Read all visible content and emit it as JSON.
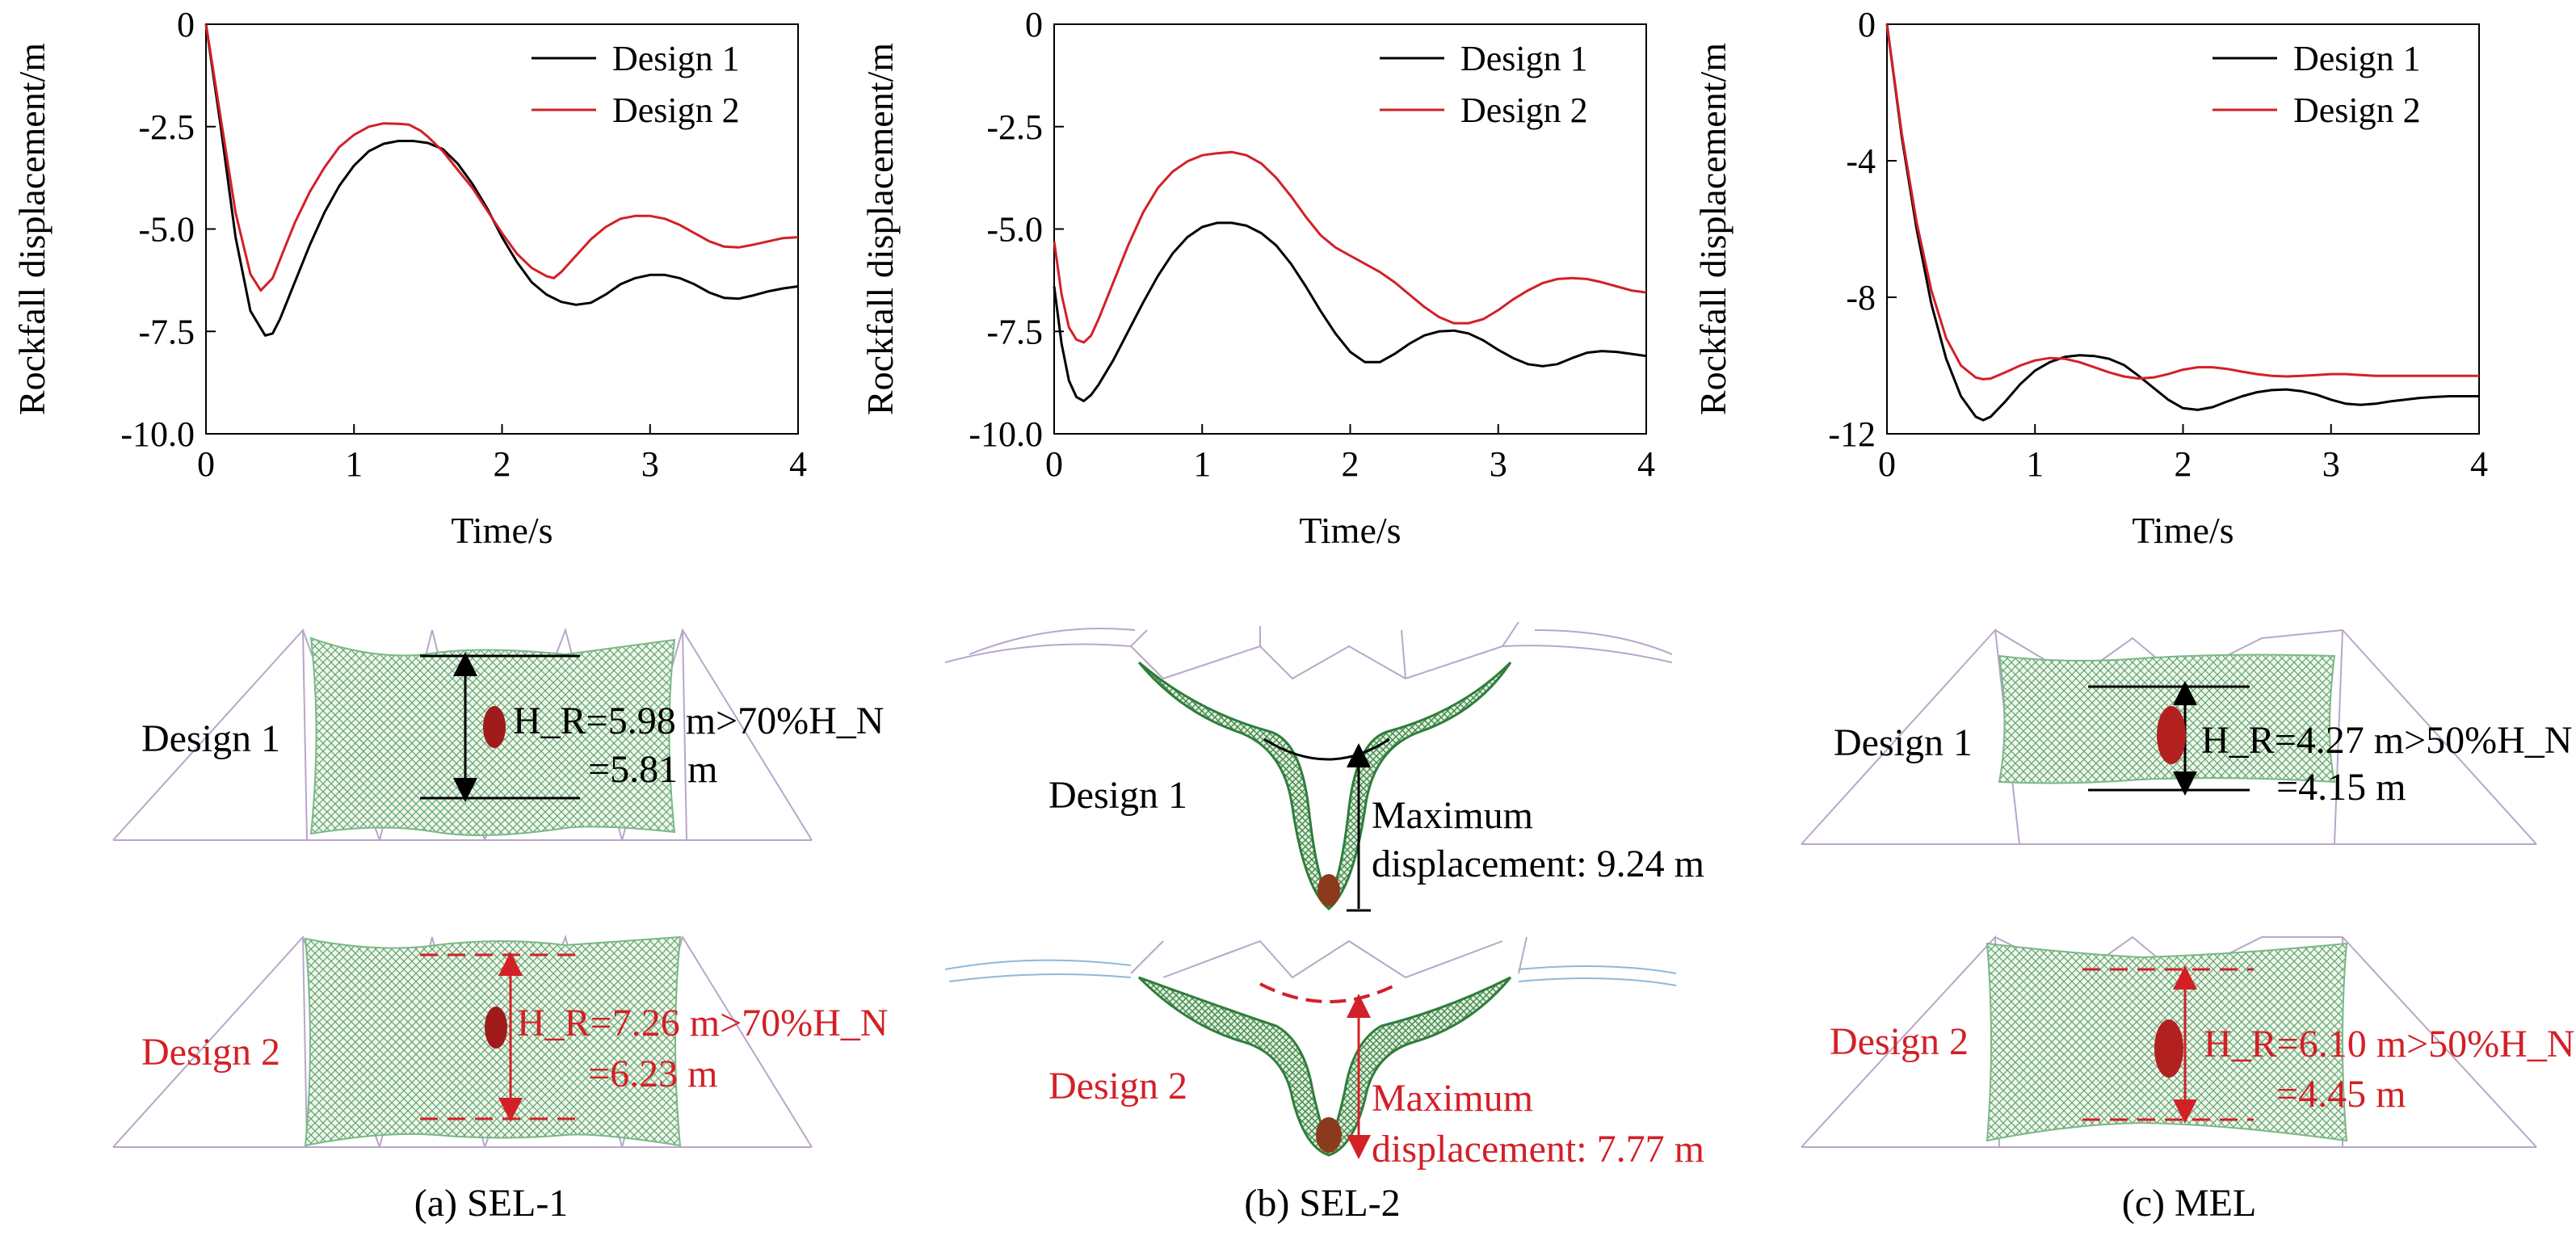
{
  "colors": {
    "design1": "#000000",
    "design2": "#d32027",
    "net": "#2e7d32",
    "rock": "#a01c1c"
  },
  "chart_data": [
    {
      "type": "line",
      "caption": "(a) SEL-1",
      "xlabel": "Time/s",
      "ylabel": "Rockfall displacement/m",
      "xlim": [
        0,
        4
      ],
      "ylim": [
        -10,
        0
      ],
      "xticks": [
        "0",
        "1",
        "2",
        "3",
        "4"
      ],
      "yticks": [
        "0",
        "-2.5",
        "-5.0",
        "-7.5",
        "-10.0"
      ],
      "ytick_values": [
        0,
        -2.5,
        -5.0,
        -7.5,
        -10.0
      ],
      "legend_position": "top-right",
      "series": [
        {
          "name": "Design 1",
          "color": "#000000",
          "x": [
            0,
            0.1,
            0.2,
            0.3,
            0.4,
            0.45,
            0.5,
            0.6,
            0.7,
            0.8,
            0.9,
            1.0,
            1.1,
            1.2,
            1.3,
            1.4,
            1.5,
            1.6,
            1.7,
            1.8,
            1.9,
            2.0,
            2.1,
            2.2,
            2.3,
            2.4,
            2.5,
            2.6,
            2.7,
            2.8,
            2.9,
            3.0,
            3.1,
            3.2,
            3.3,
            3.4,
            3.5,
            3.6,
            3.7,
            3.8,
            3.9,
            4.0
          ],
          "y": [
            0,
            -2.5,
            -5.2,
            -7.0,
            -7.6,
            -7.55,
            -7.2,
            -6.3,
            -5.4,
            -4.6,
            -3.95,
            -3.45,
            -3.1,
            -2.92,
            -2.85,
            -2.85,
            -2.9,
            -3.05,
            -3.4,
            -3.9,
            -4.5,
            -5.2,
            -5.8,
            -6.3,
            -6.6,
            -6.78,
            -6.85,
            -6.8,
            -6.6,
            -6.35,
            -6.2,
            -6.12,
            -6.12,
            -6.2,
            -6.35,
            -6.55,
            -6.68,
            -6.7,
            -6.62,
            -6.52,
            -6.45,
            -6.4
          ]
        },
        {
          "name": "Design 2",
          "color": "#d32027",
          "x": [
            0,
            0.1,
            0.2,
            0.3,
            0.37,
            0.45,
            0.5,
            0.6,
            0.7,
            0.8,
            0.9,
            1.0,
            1.1,
            1.2,
            1.3,
            1.37,
            1.45,
            1.5,
            1.6,
            1.7,
            1.8,
            1.9,
            2.0,
            2.1,
            2.2,
            2.3,
            2.35,
            2.4,
            2.5,
            2.6,
            2.7,
            2.8,
            2.9,
            3.0,
            3.1,
            3.2,
            3.3,
            3.4,
            3.5,
            3.6,
            3.7,
            3.8,
            3.9,
            4.0
          ],
          "y": [
            0,
            -2.3,
            -4.6,
            -6.1,
            -6.5,
            -6.2,
            -5.75,
            -4.85,
            -4.1,
            -3.5,
            -3.0,
            -2.7,
            -2.5,
            -2.42,
            -2.43,
            -2.45,
            -2.6,
            -2.75,
            -3.1,
            -3.55,
            -4.0,
            -4.55,
            -5.1,
            -5.6,
            -5.95,
            -6.15,
            -6.2,
            -6.05,
            -5.65,
            -5.25,
            -4.95,
            -4.75,
            -4.68,
            -4.68,
            -4.75,
            -4.9,
            -5.1,
            -5.3,
            -5.43,
            -5.45,
            -5.38,
            -5.3,
            -5.22,
            -5.2
          ]
        }
      ],
      "diagram": {
        "design1": {
          "label": "Design 1",
          "annotation_line1": "H_R=5.98 m>70%H_N",
          "annotation_line2": "=5.81 m"
        },
        "design2": {
          "label": "Design 2",
          "annotation_line1": "H_R=7.26 m>70%H_N",
          "annotation_line2": "=6.23 m"
        }
      }
    },
    {
      "type": "line",
      "caption": "(b) SEL-2",
      "xlabel": "Time/s",
      "ylabel": "Rockfall displacement/m",
      "xlim": [
        0,
        4
      ],
      "ylim": [
        -10,
        0
      ],
      "xticks": [
        "0",
        "1",
        "2",
        "3",
        "4"
      ],
      "yticks": [
        "0",
        "-2.5",
        "-5.0",
        "-7.5",
        "-10.0"
      ],
      "ytick_values": [
        0,
        -2.5,
        -5.0,
        -7.5,
        -10.0
      ],
      "legend_position": "top-right",
      "series": [
        {
          "name": "Design 1",
          "color": "#000000",
          "x": [
            0,
            0.05,
            0.1,
            0.15,
            0.2,
            0.25,
            0.3,
            0.4,
            0.5,
            0.6,
            0.7,
            0.8,
            0.9,
            1.0,
            1.1,
            1.2,
            1.3,
            1.4,
            1.5,
            1.6,
            1.7,
            1.8,
            1.9,
            2.0,
            2.1,
            2.2,
            2.3,
            2.4,
            2.5,
            2.6,
            2.7,
            2.8,
            2.9,
            3.0,
            3.1,
            3.2,
            3.3,
            3.4,
            3.5,
            3.6,
            3.7,
            3.8,
            3.9,
            4.0
          ],
          "y": [
            -6.4,
            -7.8,
            -8.7,
            -9.1,
            -9.2,
            -9.05,
            -8.8,
            -8.2,
            -7.5,
            -6.8,
            -6.15,
            -5.6,
            -5.2,
            -4.95,
            -4.85,
            -4.85,
            -4.92,
            -5.1,
            -5.4,
            -5.85,
            -6.4,
            -7.0,
            -7.55,
            -8.0,
            -8.25,
            -8.25,
            -8.05,
            -7.8,
            -7.6,
            -7.5,
            -7.48,
            -7.55,
            -7.72,
            -7.95,
            -8.15,
            -8.3,
            -8.35,
            -8.3,
            -8.15,
            -8.02,
            -7.98,
            -8.0,
            -8.05,
            -8.1
          ]
        },
        {
          "name": "Design 2",
          "color": "#d32027",
          "x": [
            0,
            0.05,
            0.1,
            0.15,
            0.2,
            0.25,
            0.3,
            0.4,
            0.5,
            0.6,
            0.7,
            0.8,
            0.9,
            1.0,
            1.1,
            1.2,
            1.3,
            1.4,
            1.5,
            1.6,
            1.7,
            1.8,
            1.9,
            2.0,
            2.1,
            2.2,
            2.3,
            2.4,
            2.5,
            2.6,
            2.7,
            2.8,
            2.9,
            3.0,
            3.1,
            3.2,
            3.3,
            3.4,
            3.5,
            3.6,
            3.7,
            3.8,
            3.9,
            4.0
          ],
          "y": [
            -5.3,
            -6.6,
            -7.4,
            -7.7,
            -7.77,
            -7.6,
            -7.2,
            -6.3,
            -5.4,
            -4.6,
            -4.0,
            -3.6,
            -3.35,
            -3.2,
            -3.15,
            -3.12,
            -3.2,
            -3.4,
            -3.75,
            -4.2,
            -4.7,
            -5.15,
            -5.45,
            -5.65,
            -5.85,
            -6.05,
            -6.3,
            -6.6,
            -6.9,
            -7.15,
            -7.3,
            -7.3,
            -7.2,
            -6.98,
            -6.72,
            -6.5,
            -6.32,
            -6.22,
            -6.2,
            -6.22,
            -6.3,
            -6.4,
            -6.5,
            -6.55
          ]
        }
      ],
      "diagram": {
        "design1": {
          "label": "Design 1",
          "annotation_line1": "Maximum",
          "annotation_line2": "displacement: 9.24 m"
        },
        "design2": {
          "label": "Design 2",
          "annotation_line1": "Maximum",
          "annotation_line2": "displacement: 7.77 m"
        }
      }
    },
    {
      "type": "line",
      "caption": "(c) MEL",
      "xlabel": "Time/s",
      "ylabel": "Rockfall displacement/m",
      "xlim": [
        0,
        4
      ],
      "ylim": [
        -12,
        0
      ],
      "xticks": [
        "0",
        "1",
        "2",
        "3",
        "4"
      ],
      "yticks": [
        "0",
        "-4",
        "-8",
        "-12"
      ],
      "ytick_values": [
        0,
        -4,
        -8,
        -12
      ],
      "legend_position": "top-right",
      "series": [
        {
          "name": "Design 1",
          "color": "#000000",
          "x": [
            0,
            0.1,
            0.2,
            0.3,
            0.4,
            0.5,
            0.6,
            0.65,
            0.7,
            0.8,
            0.9,
            1.0,
            1.1,
            1.2,
            1.3,
            1.4,
            1.5,
            1.6,
            1.7,
            1.8,
            1.9,
            2.0,
            2.1,
            2.2,
            2.3,
            2.4,
            2.5,
            2.6,
            2.7,
            2.8,
            2.9,
            3.0,
            3.1,
            3.2,
            3.3,
            3.4,
            3.5,
            3.6,
            3.7,
            3.8,
            3.9,
            4.0
          ],
          "y": [
            0,
            -3.3,
            -6.0,
            -8.2,
            -9.8,
            -10.9,
            -11.5,
            -11.6,
            -11.5,
            -11.05,
            -10.55,
            -10.15,
            -9.9,
            -9.75,
            -9.7,
            -9.72,
            -9.8,
            -9.98,
            -10.3,
            -10.65,
            -11.0,
            -11.25,
            -11.3,
            -11.22,
            -11.05,
            -10.9,
            -10.78,
            -10.72,
            -10.7,
            -10.75,
            -10.85,
            -11.0,
            -11.12,
            -11.15,
            -11.12,
            -11.05,
            -11.0,
            -10.95,
            -10.92,
            -10.9,
            -10.9,
            -10.9
          ]
        },
        {
          "name": "Design 2",
          "color": "#d32027",
          "x": [
            0,
            0.1,
            0.2,
            0.3,
            0.4,
            0.5,
            0.6,
            0.65,
            0.7,
            0.8,
            0.9,
            1.0,
            1.1,
            1.2,
            1.3,
            1.4,
            1.5,
            1.6,
            1.7,
            1.8,
            1.9,
            2.0,
            2.1,
            2.2,
            2.3,
            2.4,
            2.5,
            2.6,
            2.7,
            2.8,
            2.9,
            3.0,
            3.1,
            3.2,
            3.3,
            3.4,
            3.5,
            3.6,
            3.7,
            3.8,
            3.9,
            4.0
          ],
          "y": [
            0,
            -3.2,
            -5.8,
            -7.8,
            -9.2,
            -10.0,
            -10.35,
            -10.4,
            -10.38,
            -10.2,
            -10.0,
            -9.85,
            -9.78,
            -9.8,
            -9.9,
            -10.05,
            -10.2,
            -10.32,
            -10.38,
            -10.35,
            -10.25,
            -10.12,
            -10.05,
            -10.05,
            -10.1,
            -10.18,
            -10.25,
            -10.3,
            -10.32,
            -10.3,
            -10.28,
            -10.25,
            -10.25,
            -10.28,
            -10.3,
            -10.3,
            -10.3,
            -10.3,
            -10.3,
            -10.3,
            -10.3,
            -10.3
          ]
        }
      ],
      "diagram": {
        "design1": {
          "label": "Design 1",
          "annotation_line1": "H_R=4.27 m>50%H_N",
          "annotation_line2": "=4.15 m"
        },
        "design2": {
          "label": "Design 2",
          "annotation_line1": "H_R=6.10 m>50%H_N",
          "annotation_line2": "=4.45 m"
        }
      }
    }
  ]
}
